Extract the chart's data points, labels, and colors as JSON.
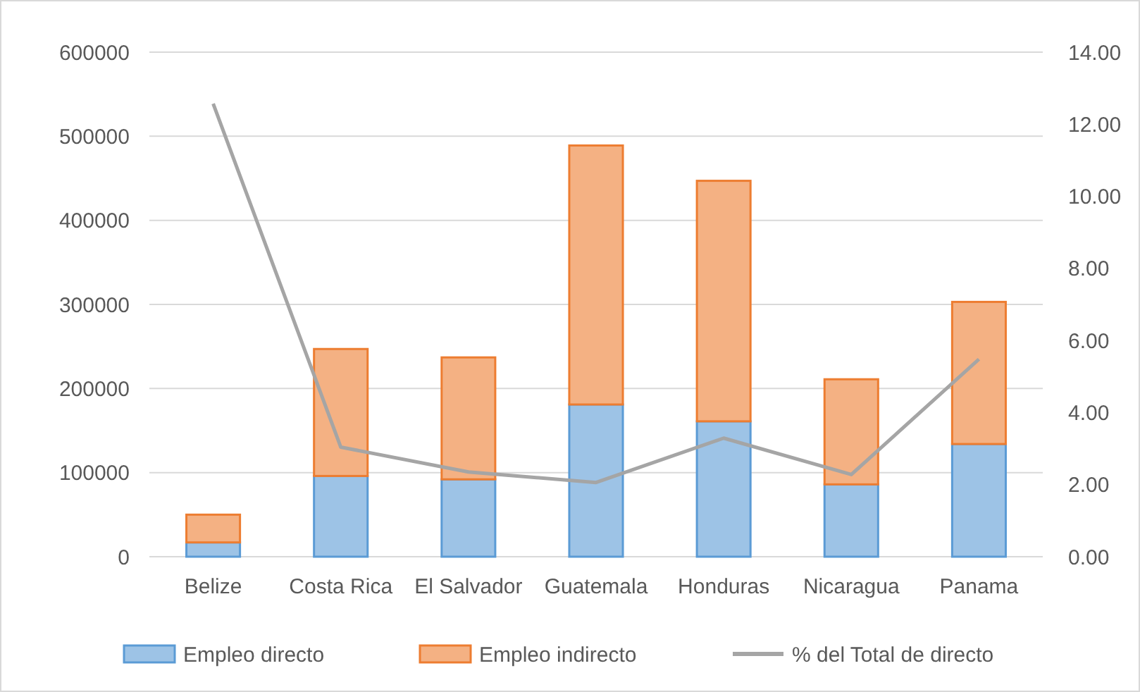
{
  "chart_data": {
    "type": "bar",
    "stacked": true,
    "categories": [
      "Belize",
      "Costa Rica",
      "El Salvador",
      "Guatemala",
      "Honduras",
      "Nicaragua",
      "Panama"
    ],
    "series": [
      {
        "name": "Empleo directo",
        "color": "#9dc3e6",
        "values": [
          17000,
          96000,
          92000,
          181000,
          161000,
          86000,
          134000
        ]
      },
      {
        "name": "Empleo indirecto",
        "color": "#f4b183",
        "values": [
          33000,
          151000,
          145000,
          308000,
          286000,
          125000,
          169000
        ]
      },
      {
        "name": "% del Total de directo",
        "type": "line",
        "axis": "y2",
        "color": "#a5a5a5",
        "values": [
          12.57,
          3.04,
          2.35,
          2.06,
          3.29,
          2.28,
          5.48
        ]
      }
    ],
    "ylim": [
      0,
      600000
    ],
    "yticks": [
      0,
      100000,
      200000,
      300000,
      400000,
      500000,
      600000
    ],
    "y2lim": [
      0,
      14
    ],
    "y2ticks": [
      {
        "value": 0,
        "label": "0.00"
      },
      {
        "value": 2,
        "label": "2.00"
      },
      {
        "value": 4,
        "label": "4.00"
      },
      {
        "value": 6,
        "label": "6.00"
      },
      {
        "value": 8,
        "label": "8.00"
      },
      {
        "value": 10,
        "label": "10.00"
      },
      {
        "value": 12,
        "label": "12.00"
      },
      {
        "value": 14,
        "label": "14.00"
      }
    ],
    "grid": "y",
    "legend": "bottom",
    "marker": "none"
  }
}
